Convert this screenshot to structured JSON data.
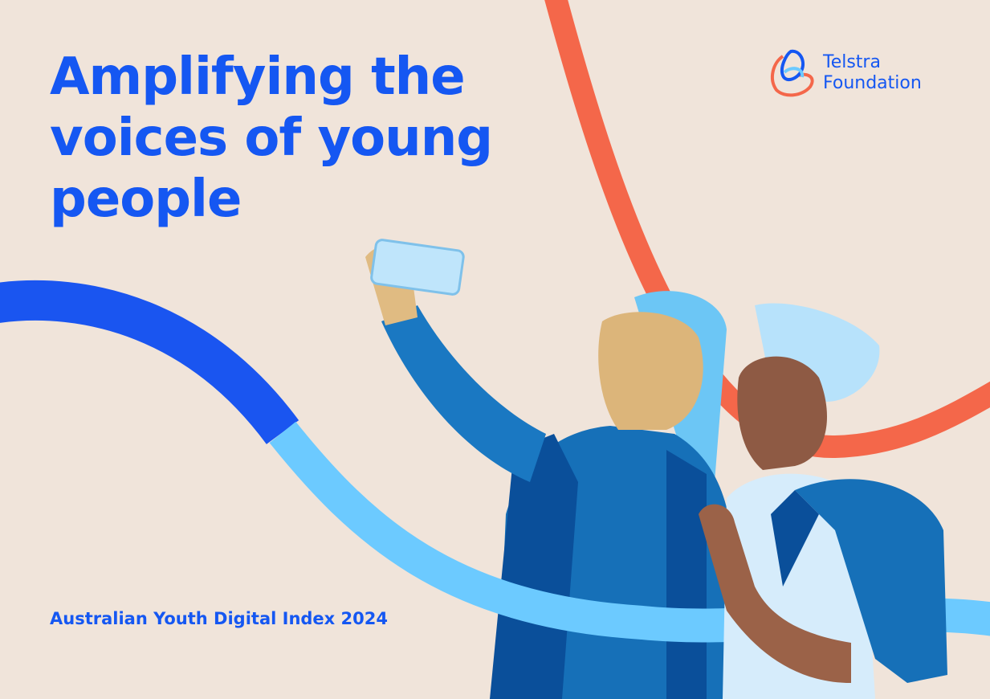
{
  "title_lines": [
    "Amplifying the",
    "voices of young",
    "people"
  ],
  "logo": {
    "line1": "Telstra",
    "line2": "Foundation"
  },
  "subtitle": "Australian Youth Digital Index 2024"
}
